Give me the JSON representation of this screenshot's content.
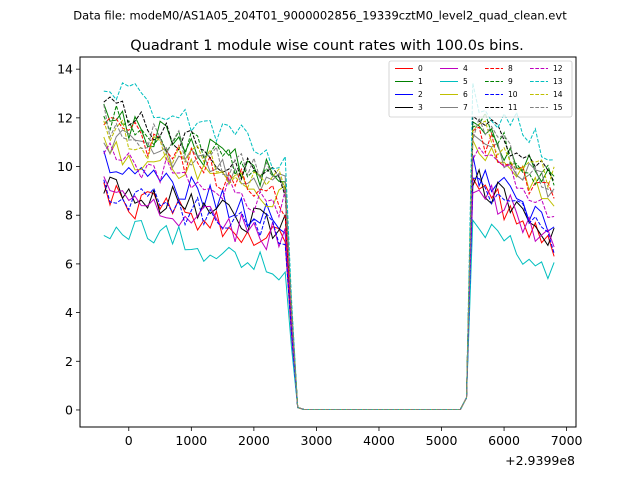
{
  "header": {
    "suptitle": "Data file: modeM0/AS1A05_204T01_9000002856_19339cztM0_level2_quad_clean.evt"
  },
  "chart_data": {
    "type": "line",
    "title": "Quadrant 1 module wise count rates with 100.0s bins.",
    "xlabel": "",
    "ylabel": "",
    "x_offset_label": "+2.9399e8",
    "xlim": [
      -780,
      7150
    ],
    "ylim": [
      -0.7,
      14.5
    ],
    "x_ticks": [
      0,
      1000,
      2000,
      3000,
      4000,
      5000,
      6000,
      7000
    ],
    "x_tick_labels": [
      "0",
      "1000",
      "2000",
      "3000",
      "4000",
      "5000",
      "6000",
      "7000"
    ],
    "y_ticks": [
      0,
      2,
      4,
      6,
      8,
      10,
      12,
      14
    ],
    "y_tick_labels": [
      "0",
      "2",
      "4",
      "6",
      "8",
      "10",
      "12",
      "14"
    ],
    "legend_position": "top-right",
    "x": {
      "seg1_start": -400,
      "seg1_end": 2700,
      "gap_end": 5300,
      "seg2_start": 5400,
      "seg2_end": 6800,
      "step": 100
    },
    "series": [
      {
        "name": "0",
        "color": "#ff0000",
        "dash": "solid",
        "base1": 8.8,
        "end1": 6.9,
        "base2": 9.2,
        "end2": 6.8
      },
      {
        "name": "1",
        "color": "#008000",
        "dash": "solid",
        "base1": 12.0,
        "end1": 9.5,
        "base2": 11.8,
        "end2": 9.4
      },
      {
        "name": "2",
        "color": "#0000ff",
        "dash": "solid",
        "base1": 10.2,
        "end1": 7.6,
        "base2": 10.0,
        "end2": 7.4
      },
      {
        "name": "3",
        "color": "#000000",
        "dash": "solid",
        "base1": 9.3,
        "end1": 7.4,
        "base2": 9.6,
        "end2": 7.2
      },
      {
        "name": "4",
        "color": "#bf00bf",
        "dash": "solid",
        "base1": 9.0,
        "end1": 7.0,
        "base2": 9.3,
        "end2": 7.0
      },
      {
        "name": "5",
        "color": "#00bfbf",
        "dash": "solid",
        "base1": 7.7,
        "end1": 5.8,
        "base2": 7.6,
        "end2": 5.8
      },
      {
        "name": "6",
        "color": "#bfbf00",
        "dash": "solid",
        "base1": 10.8,
        "end1": 8.7,
        "base2": 11.0,
        "end2": 8.8
      },
      {
        "name": "7",
        "color": "#808080",
        "dash": "solid",
        "base1": 11.2,
        "end1": 9.0,
        "base2": 11.5,
        "end2": 9.1
      },
      {
        "name": "8",
        "color": "#ff0000",
        "dash": "dashed",
        "base1": 11.8,
        "end1": 8.5,
        "base2": 11.6,
        "end2": 8.6
      },
      {
        "name": "9",
        "color": "#008000",
        "dash": "dashed",
        "base1": 12.1,
        "end1": 9.4,
        "base2": 12.0,
        "end2": 9.2
      },
      {
        "name": "10",
        "color": "#0000ff",
        "dash": "dashed",
        "base1": 9.0,
        "end1": 7.3,
        "base2": 9.3,
        "end2": 7.0
      },
      {
        "name": "11",
        "color": "#000000",
        "dash": "dashed",
        "base1": 12.4,
        "end1": 9.3,
        "base2": 12.2,
        "end2": 9.2
      },
      {
        "name": "12",
        "color": "#bf00bf",
        "dash": "dashed",
        "base1": 10.5,
        "end1": 8.4,
        "base2": 10.9,
        "end2": 8.3
      },
      {
        "name": "13",
        "color": "#00bfbf",
        "dash": "dashed",
        "base1": 13.5,
        "end1": 10.3,
        "base2": 13.0,
        "end2": 10.4
      },
      {
        "name": "14",
        "color": "#bfbf00",
        "dash": "dashed",
        "base1": 11.5,
        "end1": 9.2,
        "base2": 11.6,
        "end2": 9.5
      },
      {
        "name": "15",
        "color": "#808080",
        "dash": "dashed",
        "base1": 11.9,
        "end1": 9.3,
        "base2": 11.7,
        "end2": 9.0
      }
    ]
  }
}
